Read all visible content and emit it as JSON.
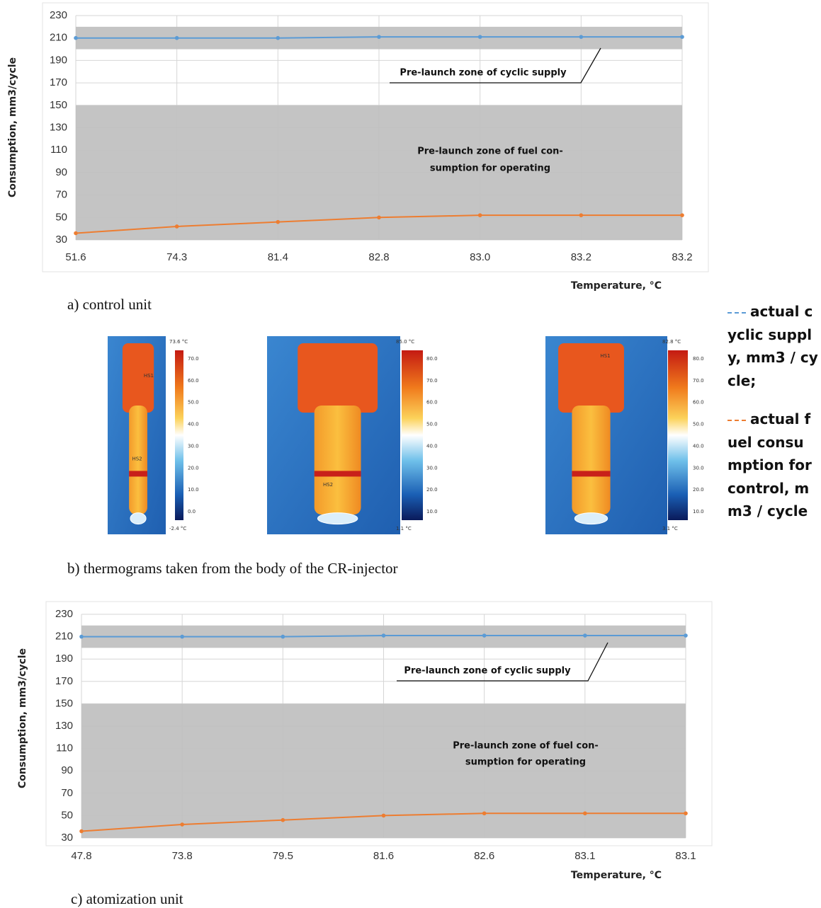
{
  "chart_data": [
    {
      "type": "line",
      "x_label": "Temperature, °C",
      "y_label": "Consumption, mm3/cycle",
      "caption": "a) control unit",
      "categories": [
        "51.6",
        "74.3",
        "81.4",
        "82.8",
        "83.0",
        "83.2",
        "83.2"
      ],
      "series": [
        {
          "name": "actual cyclic supply, mm3 / cycle;",
          "color": "#5b9bd5",
          "values": [
            210,
            210,
            210,
            211,
            211,
            211,
            211
          ]
        },
        {
          "name": "actual fuel consumption for control, mm3 / cycle",
          "color": "#ed7d31",
          "values": [
            36,
            42,
            46,
            50,
            52,
            52,
            52
          ]
        }
      ],
      "zones": [
        {
          "from": 200,
          "to": 220
        },
        {
          "from": 30,
          "to": 150
        }
      ],
      "annotations": [
        "Pre-launch zone of cyclic supply",
        "Pre-launch zone of fuel con-",
        "sumption for operating"
      ],
      "ylim": [
        30,
        230
      ],
      "yticks": [
        30,
        50,
        70,
        90,
        110,
        130,
        150,
        170,
        190,
        210,
        230
      ],
      "grid": true
    },
    {
      "type": "line",
      "x_label": "Temperature, °C",
      "y_label": "Consumption, mm3/cycle",
      "caption": "c) atomization unit",
      "categories": [
        "47.8",
        "73.8",
        "79.5",
        "81.6",
        "82.6",
        "83.1",
        "83.1"
      ],
      "series": [
        {
          "color": "#5b9bd5",
          "values": [
            210,
            210,
            210,
            211,
            211,
            211,
            211
          ]
        },
        {
          "color": "#ed7d31",
          "values": [
            36,
            42,
            46,
            50,
            52,
            52,
            52
          ]
        }
      ],
      "zones": [
        {
          "from": 200,
          "to": 220
        },
        {
          "from": 30,
          "to": 150
        }
      ],
      "annotations": [
        "Pre-launch zone of cyclic supply",
        "Pre-launch zone of fuel con-",
        "sumption for operating"
      ],
      "ylim": [
        30,
        230
      ],
      "yticks": [
        30,
        50,
        70,
        90,
        110,
        130,
        150,
        170,
        190,
        210,
        230
      ],
      "grid": true
    }
  ],
  "thermograms": {
    "caption": "b) thermograms taken from the body of the CR-injector",
    "images": [
      {
        "max": "73.6 °C",
        "min": "-2.4 °C",
        "scale": [
          "70.0",
          "60.0",
          "50.0",
          "40.0",
          "30.0",
          "20.0",
          "10.0",
          "0.0"
        ],
        "markers": [
          "HS1",
          "HS2"
        ]
      },
      {
        "max": "85.0 °C",
        "min": "1.1 °C",
        "scale": [
          "80.0",
          "70.0",
          "60.0",
          "50.0",
          "40.0",
          "30.0",
          "20.0",
          "10.0"
        ],
        "markers": [
          "HS2"
        ]
      },
      {
        "max": "82.8 °C",
        "min": "3.1 °C",
        "scale": [
          "80.0",
          "70.0",
          "60.0",
          "50.0",
          "40.0",
          "30.0",
          "20.0",
          "10.0"
        ],
        "markers": [
          "HS1"
        ]
      }
    ]
  }
}
